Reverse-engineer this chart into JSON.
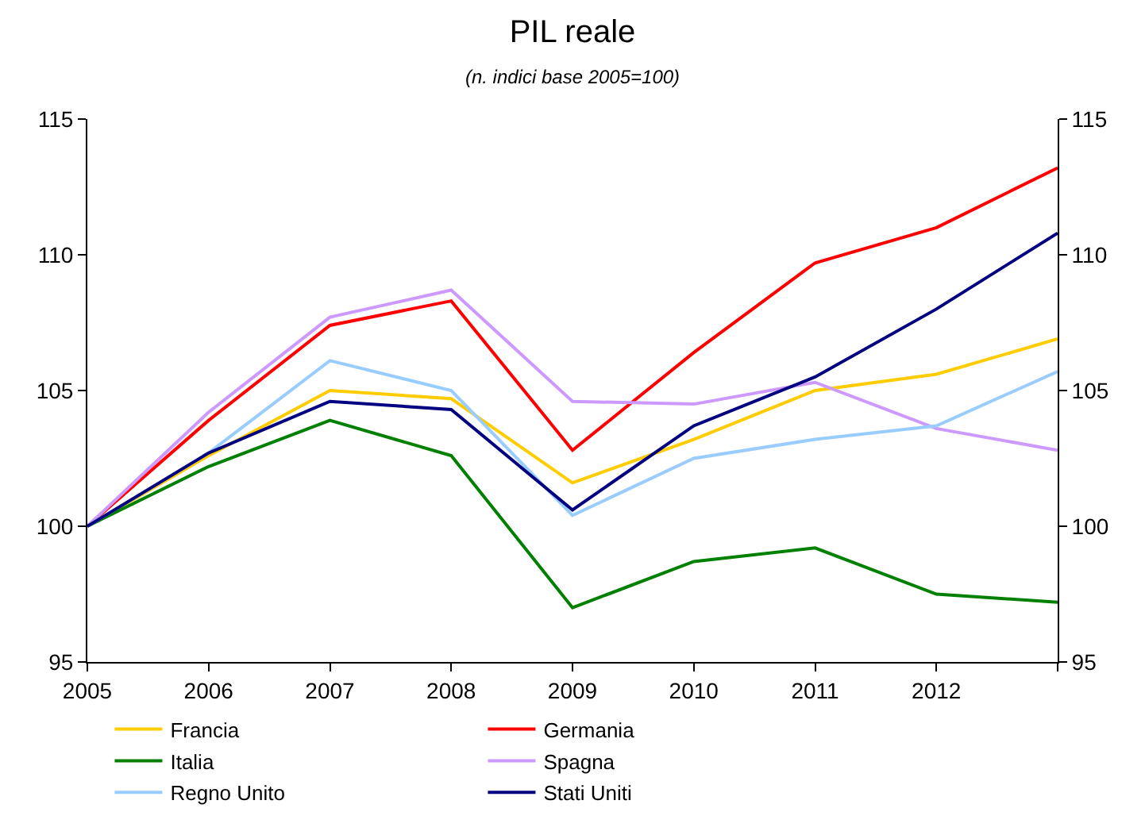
{
  "chart_data": {
    "type": "line",
    "title": "PIL reale",
    "subtitle": "(n. indici base 2005=100)",
    "x": [
      2005,
      2006,
      2007,
      2008,
      2009,
      2010,
      2011,
      2012,
      2013
    ],
    "xlim": [
      2005,
      2013
    ],
    "xticks": [
      2005,
      2006,
      2007,
      2008,
      2009,
      2010,
      2011,
      2012,
      {
        "value": 2013,
        "label": null
      }
    ],
    "ylim": [
      95,
      115
    ],
    "yticks": [
      95,
      100,
      105,
      110,
      115
    ],
    "y2lim": [
      95,
      115
    ],
    "y2ticks": [
      95,
      100,
      105,
      110,
      115
    ],
    "legend": "bottom",
    "marker": "none",
    "line_style": "solid",
    "series": [
      {
        "name": "Francia",
        "color": "#ffcc00",
        "values": [
          100,
          102.6,
          105.0,
          104.7,
          101.6,
          103.2,
          105.0,
          105.6,
          106.9
        ]
      },
      {
        "name": "Germania",
        "color": "#ff0000",
        "values": [
          100,
          103.9,
          107.4,
          108.3,
          102.8,
          106.4,
          109.7,
          111.0,
          113.2
        ]
      },
      {
        "name": "Italia",
        "color": "#008000",
        "values": [
          100,
          102.2,
          103.9,
          102.6,
          97.0,
          98.7,
          99.2,
          97.5,
          97.2
        ]
      },
      {
        "name": "Spagna",
        "color": "#cc99ff",
        "values": [
          100,
          104.2,
          107.7,
          108.7,
          104.6,
          104.5,
          105.3,
          103.6,
          102.8
        ]
      },
      {
        "name": "Regno Unito",
        "color": "#99ccff",
        "values": [
          100,
          102.7,
          106.1,
          105.0,
          100.4,
          102.5,
          103.2,
          103.7,
          105.7
        ]
      },
      {
        "name": "Stati Uniti",
        "color": "#000080",
        "values": [
          100,
          102.7,
          104.6,
          104.3,
          100.6,
          103.7,
          105.5,
          108.0,
          110.8
        ]
      }
    ]
  }
}
